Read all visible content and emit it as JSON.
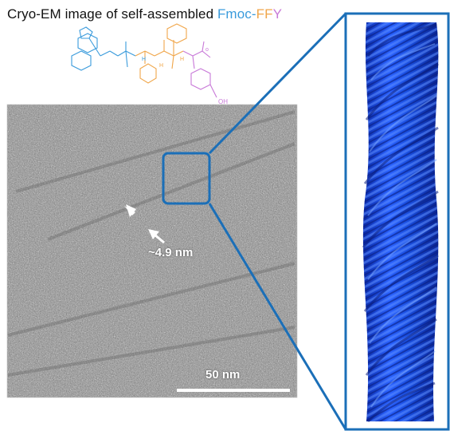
{
  "title": {
    "prefix": "Cryo-EM image of self-assembled ",
    "fmoc": "Fmoc",
    "dash": "-",
    "ff": "FF",
    "y": "Y"
  },
  "molecule": {
    "nh_label_1": "H",
    "nh_label_2": "H",
    "nh_label_3": "H",
    "oh_label": "OH",
    "charge_label": "o"
  },
  "micrograph": {
    "width_annotation": "~4.9 nm",
    "scale_bar_label": "50 nm"
  },
  "colors": {
    "fmoc": "#3a9bdc",
    "ff": "#f0a64a",
    "y": "#c879d8",
    "callout": "#1b6fb8",
    "density": "#1a4fe0"
  }
}
